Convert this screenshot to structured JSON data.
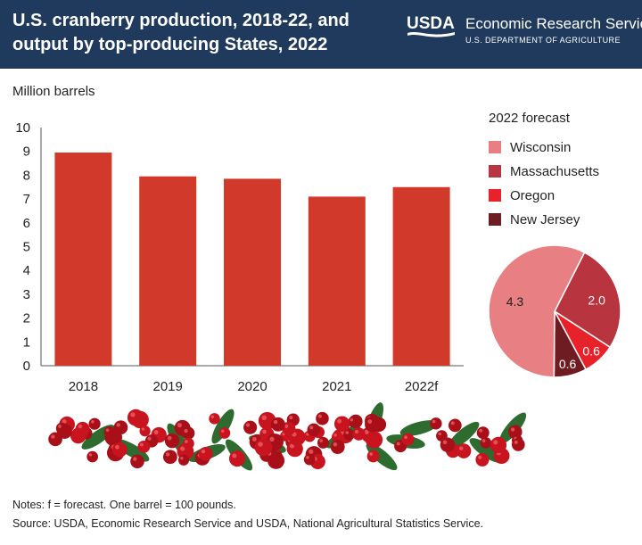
{
  "header": {
    "title": "U.S. cranberry production, 2018-22, and output by top-producing States, 2022",
    "logo_text": "USDA",
    "agency_name": "Economic Research Service",
    "department": "U.S. DEPARTMENT OF AGRICULTURE"
  },
  "colors": {
    "header_bg": "#1f3a5c",
    "bar": "#d13a2a"
  },
  "notes": {
    "line1": "Notes: f = forecast. One barrel = 100 pounds.",
    "line2": "Source: USDA, Economic Research Service and USDA, National Agricultural Statistics Service."
  },
  "chart_data": [
    {
      "type": "bar",
      "title": "U.S. cranberry production, 2018-22",
      "ylabel": "Million barrels",
      "xlabel": "",
      "categories": [
        "2018",
        "2019",
        "2020",
        "2021",
        "2022f"
      ],
      "values": [
        8.95,
        7.95,
        7.85,
        7.1,
        7.5
      ],
      "ylim": [
        0,
        10
      ],
      "yticks": [
        "0",
        "1",
        "2",
        "3",
        "4",
        "5",
        "6",
        "7",
        "8",
        "9",
        "10"
      ],
      "grid": false
    },
    {
      "type": "pie",
      "title": "2022 forecast",
      "legend_position": "right",
      "slices": [
        {
          "name": "Wisconsin",
          "value": 4.3,
          "label": "4.3",
          "color": "#e87f83"
        },
        {
          "name": "Massachusetts",
          "value": 2.0,
          "label": "2.0",
          "color": "#b8353f"
        },
        {
          "name": "Oregon",
          "value": 0.6,
          "label": "0.6",
          "color": "#e8222b"
        },
        {
          "name": "New Jersey",
          "value": 0.6,
          "label": "0.6",
          "color": "#6e1c22"
        }
      ]
    }
  ]
}
